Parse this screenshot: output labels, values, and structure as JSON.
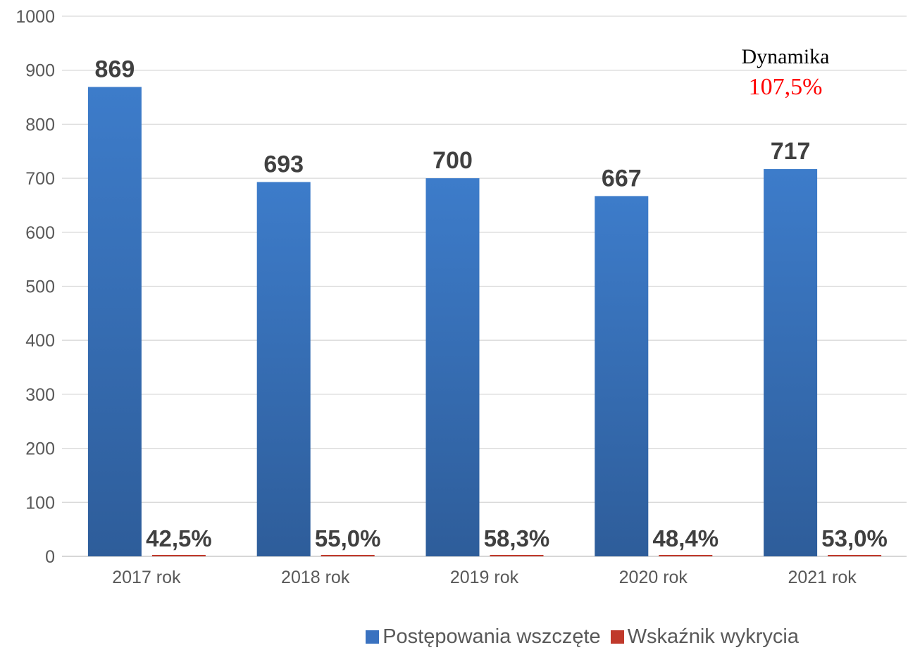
{
  "chart_data": {
    "type": "bar",
    "categories": [
      "2017 rok",
      "2018 rok",
      "2019 rok",
      "2020 rok",
      "2021 rok"
    ],
    "series": [
      {
        "name": "Postępowania wszczęte",
        "values": [
          869,
          693,
          700,
          667,
          717
        ],
        "labels": [
          "869",
          "693",
          "700",
          "667",
          "717"
        ],
        "color": "#3a72c0"
      },
      {
        "name": "Wskaźnik wykrycia",
        "values": [
          42.5,
          55.0,
          58.3,
          48.4,
          53.0
        ],
        "labels": [
          "42,5%",
          "55,0%",
          "58,3%",
          "48,4%",
          "53,0%"
        ],
        "color": "#c0392b"
      }
    ],
    "ylim": [
      0,
      1000
    ],
    "yticks": [
      0,
      100,
      200,
      300,
      400,
      500,
      600,
      700,
      800,
      900,
      1000
    ],
    "grid": true,
    "legend": "bottom",
    "annotation": {
      "title": "Dynamika",
      "value": "107,5%",
      "value_color": "#ff0000"
    }
  }
}
